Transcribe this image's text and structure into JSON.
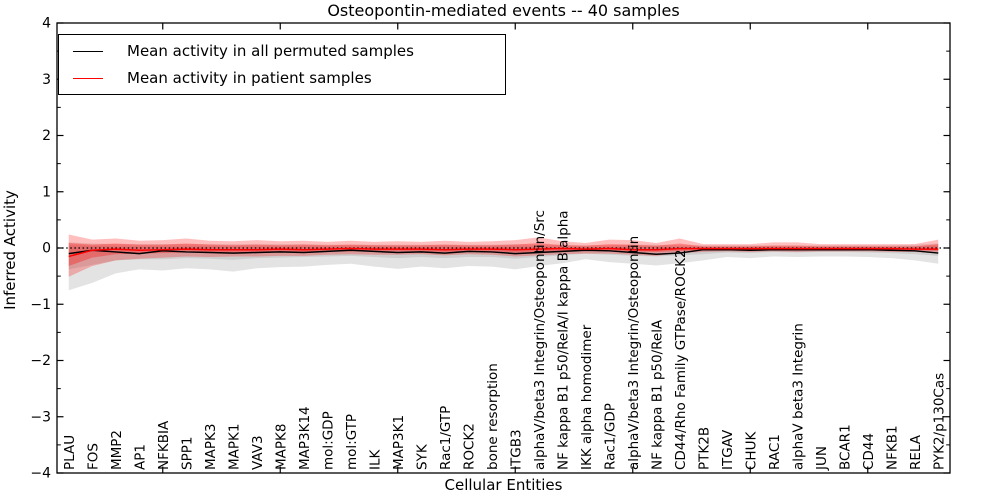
{
  "title": "Osteopontin-mediated events -- 40 samples",
  "axes": {
    "xlabel": "Cellular Entities",
    "ylabel": "Inferred Activity",
    "y_tick_labels": [
      "4",
      "3",
      "2",
      "1",
      "0",
      "−1",
      "−2",
      "−3",
      "−4"
    ],
    "y_tick_values": [
      4,
      3,
      2,
      1,
      0,
      -1,
      -2,
      -3,
      -4
    ]
  },
  "legend": {
    "items": [
      {
        "label": "Mean activity in all permuted samples",
        "color": "#000000"
      },
      {
        "label": "Mean activity in patient samples",
        "color": "#ff0000"
      }
    ]
  },
  "colors": {
    "permuted_line": "#000000",
    "patient_line": "#ff0000",
    "zero_line": "#000000",
    "background": "#ffffff"
  },
  "chart_data": {
    "type": "line",
    "title": "Osteopontin-mediated events -- 40 samples",
    "xlabel": "Cellular Entities",
    "ylabel": "Inferred Activity",
    "ylim": [
      -4,
      4
    ],
    "grid": false,
    "legend_position": "upper left",
    "zero_reference_line": {
      "y": 0,
      "style": "dotted",
      "color": "#000000"
    },
    "x_tick_mark_indices": [
      4,
      9,
      14,
      19,
      24,
      29,
      34
    ],
    "y_minor_tick_step": 0.5,
    "categories": [
      "PLAU",
      "FOS",
      "MMP2",
      "AP1",
      "NFKBIA",
      "SPP1",
      "MAPK3",
      "MAPK1",
      "VAV3",
      "MAPK8",
      "MAP3K14",
      "mol:GDP",
      "mol:GTP",
      "ILK",
      "MAP3K1",
      "SYK",
      "Rac1/GTP",
      "ROCK2",
      "bone resorption",
      "ITGB3",
      "alphaV/beta3 Integrin/Osteopontin/Src",
      "NF kappa B1 p50/RelA/I kappa B alpha",
      "IKK alpha homodimer",
      "Rac1/GDP",
      "alphaV/beta3 Integrin/Osteopontin",
      "NF kappa B1 p50/RelA",
      "CD44/Rho Family GTPase/ROCK2",
      "PTK2B",
      "ITGAV",
      "CHUK",
      "RAC1",
      "alphaV beta3 Integrin",
      "JUN",
      "BCAR1",
      "CD44",
      "NFKB1",
      "RELA",
      "PYK2/p130Cas"
    ],
    "series": [
      {
        "name": "Mean activity in all permuted samples",
        "color": "#000000",
        "values": [
          -0.1,
          -0.04,
          -0.07,
          -0.1,
          -0.05,
          -0.07,
          -0.08,
          -0.09,
          -0.08,
          -0.07,
          -0.08,
          -0.06,
          -0.04,
          -0.06,
          -0.08,
          -0.07,
          -0.09,
          -0.06,
          -0.07,
          -0.1,
          -0.08,
          -0.06,
          -0.04,
          -0.05,
          -0.08,
          -0.11,
          -0.09,
          -0.03,
          -0.03,
          -0.04,
          -0.03,
          -0.03,
          -0.03,
          -0.03,
          -0.03,
          -0.04,
          -0.05,
          -0.09
        ]
      },
      {
        "name": "Mean activity in patient samples",
        "color": "#ff0000",
        "values": [
          -0.15,
          -0.04,
          -0.02,
          -0.04,
          -0.03,
          -0.02,
          -0.03,
          -0.03,
          -0.03,
          -0.02,
          -0.03,
          -0.02,
          -0.01,
          -0.02,
          -0.02,
          -0.02,
          -0.03,
          -0.02,
          -0.02,
          -0.03,
          -0.02,
          -0.01,
          -0.02,
          -0.01,
          -0.03,
          -0.03,
          -0.01,
          -0.01,
          -0.01,
          -0.01,
          -0.01,
          -0.01,
          -0.01,
          -0.01,
          -0.01,
          -0.01,
          -0.02,
          -0.02
        ]
      }
    ],
    "bands": [
      {
        "name": "permuted-range-band",
        "color": "#000000",
        "opacity": 0.11,
        "upper": [
          0.1,
          0.08,
          0.07,
          0.07,
          0.07,
          0.07,
          0.07,
          0.07,
          0.07,
          0.07,
          0.07,
          0.06,
          0.06,
          0.06,
          0.06,
          0.06,
          0.06,
          0.06,
          0.06,
          0.07,
          0.06,
          0.06,
          0.05,
          0.05,
          0.06,
          0.06,
          0.05,
          0.05,
          0.05,
          0.05,
          0.05,
          0.05,
          0.05,
          0.05,
          0.05,
          0.05,
          0.06,
          0.08
        ],
        "lower": [
          -0.75,
          -0.62,
          -0.45,
          -0.38,
          -0.4,
          -0.36,
          -0.38,
          -0.42,
          -0.36,
          -0.34,
          -0.33,
          -0.3,
          -0.28,
          -0.33,
          -0.37,
          -0.33,
          -0.36,
          -0.32,
          -0.33,
          -0.38,
          -0.32,
          -0.27,
          -0.2,
          -0.25,
          -0.28,
          -0.31,
          -0.27,
          -0.22,
          -0.16,
          -0.18,
          -0.15,
          -0.16,
          -0.15,
          -0.15,
          -0.16,
          -0.18,
          -0.22,
          -0.28
        ]
      },
      {
        "name": "permuted-std-band",
        "color": "#000000",
        "opacity": 0.09,
        "upper": [
          0.05,
          0.04,
          0.03,
          0.03,
          0.03,
          0.03,
          0.03,
          0.03,
          0.03,
          0.03,
          0.03,
          0.03,
          0.03,
          0.03,
          0.03,
          0.03,
          0.03,
          0.03,
          0.03,
          0.03,
          0.03,
          0.03,
          0.02,
          0.02,
          0.03,
          0.03,
          0.02,
          0.02,
          0.02,
          0.02,
          0.02,
          0.02,
          0.02,
          0.02,
          0.02,
          0.02,
          0.03,
          0.04
        ],
        "lower": [
          -0.38,
          -0.3,
          -0.22,
          -0.2,
          -0.2,
          -0.18,
          -0.19,
          -0.21,
          -0.18,
          -0.17,
          -0.16,
          -0.15,
          -0.14,
          -0.16,
          -0.18,
          -0.16,
          -0.18,
          -0.16,
          -0.16,
          -0.19,
          -0.16,
          -0.13,
          -0.1,
          -0.12,
          -0.14,
          -0.15,
          -0.13,
          -0.11,
          -0.08,
          -0.09,
          -0.07,
          -0.08,
          -0.07,
          -0.07,
          -0.08,
          -0.09,
          -0.11,
          -0.14
        ]
      },
      {
        "name": "patient-range-band",
        "color": "#ff0000",
        "opacity": 0.25,
        "upper": [
          0.24,
          0.15,
          0.17,
          0.13,
          0.14,
          0.17,
          0.13,
          0.12,
          0.14,
          0.12,
          0.13,
          0.11,
          0.13,
          0.11,
          0.12,
          0.11,
          0.13,
          0.11,
          0.12,
          0.14,
          0.19,
          0.12,
          0.09,
          0.15,
          0.14,
          0.09,
          0.17,
          0.07,
          0.07,
          0.07,
          0.1,
          0.1,
          0.07,
          0.07,
          0.07,
          0.07,
          0.07,
          0.15
        ],
        "lower": [
          -0.51,
          -0.32,
          -0.22,
          -0.19,
          -0.17,
          -0.15,
          -0.16,
          -0.15,
          -0.15,
          -0.14,
          -0.14,
          -0.12,
          -0.11,
          -0.12,
          -0.12,
          -0.11,
          -0.13,
          -0.11,
          -0.12,
          -0.15,
          -0.13,
          -0.11,
          -0.1,
          -0.1,
          -0.12,
          -0.14,
          -0.09,
          -0.07,
          -0.06,
          -0.07,
          -0.06,
          -0.07,
          -0.06,
          -0.06,
          -0.06,
          -0.07,
          -0.07,
          -0.09
        ]
      },
      {
        "name": "patient-std-band",
        "color": "#ff0000",
        "opacity": 0.3,
        "upper": [
          0.09,
          0.06,
          0.08,
          0.06,
          0.06,
          0.08,
          0.06,
          0.05,
          0.06,
          0.05,
          0.06,
          0.05,
          0.06,
          0.05,
          0.05,
          0.05,
          0.06,
          0.05,
          0.05,
          0.06,
          0.09,
          0.05,
          0.04,
          0.07,
          0.06,
          0.04,
          0.08,
          0.03,
          0.03,
          0.03,
          0.04,
          0.04,
          0.03,
          0.03,
          0.03,
          0.03,
          0.03,
          0.07
        ],
        "lower": [
          -0.32,
          -0.17,
          -0.11,
          -0.1,
          -0.09,
          -0.08,
          -0.08,
          -0.08,
          -0.08,
          -0.07,
          -0.07,
          -0.06,
          -0.06,
          -0.06,
          -0.06,
          -0.06,
          -0.07,
          -0.06,
          -0.06,
          -0.08,
          -0.07,
          -0.06,
          -0.05,
          -0.05,
          -0.06,
          -0.07,
          -0.05,
          -0.04,
          -0.03,
          -0.04,
          -0.03,
          -0.04,
          -0.03,
          -0.03,
          -0.03,
          -0.04,
          -0.04,
          -0.05
        ]
      }
    ]
  }
}
